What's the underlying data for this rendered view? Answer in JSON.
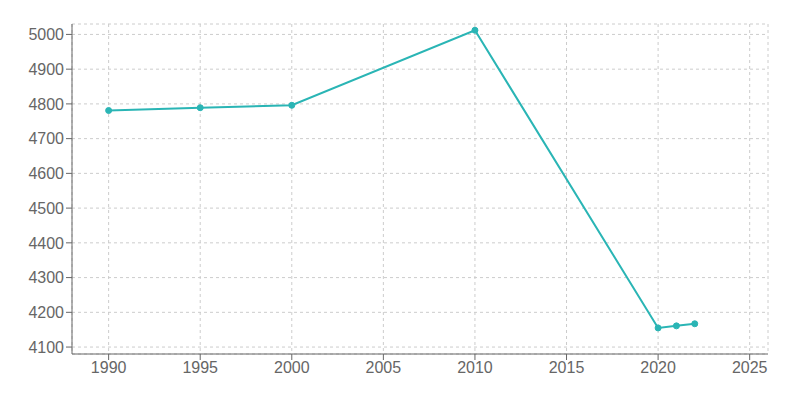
{
  "chart_data": {
    "type": "line",
    "x": [
      1990,
      1995,
      2000,
      2010,
      2020,
      2021,
      2022
    ],
    "values": [
      4781,
      4789,
      4796,
      5012,
      4155,
      4161,
      4167
    ],
    "color": "#2ab5b5",
    "marker": "circle",
    "xlim": [
      1988,
      2026
    ],
    "xticks": [
      1990,
      1995,
      2000,
      2005,
      2010,
      2015,
      2020,
      2025
    ],
    "ylim": [
      4080,
      5030
    ],
    "yticks": [
      4100,
      4200,
      4300,
      4400,
      4500,
      4600,
      4700,
      4800,
      4900,
      5000
    ],
    "grid": true
  }
}
